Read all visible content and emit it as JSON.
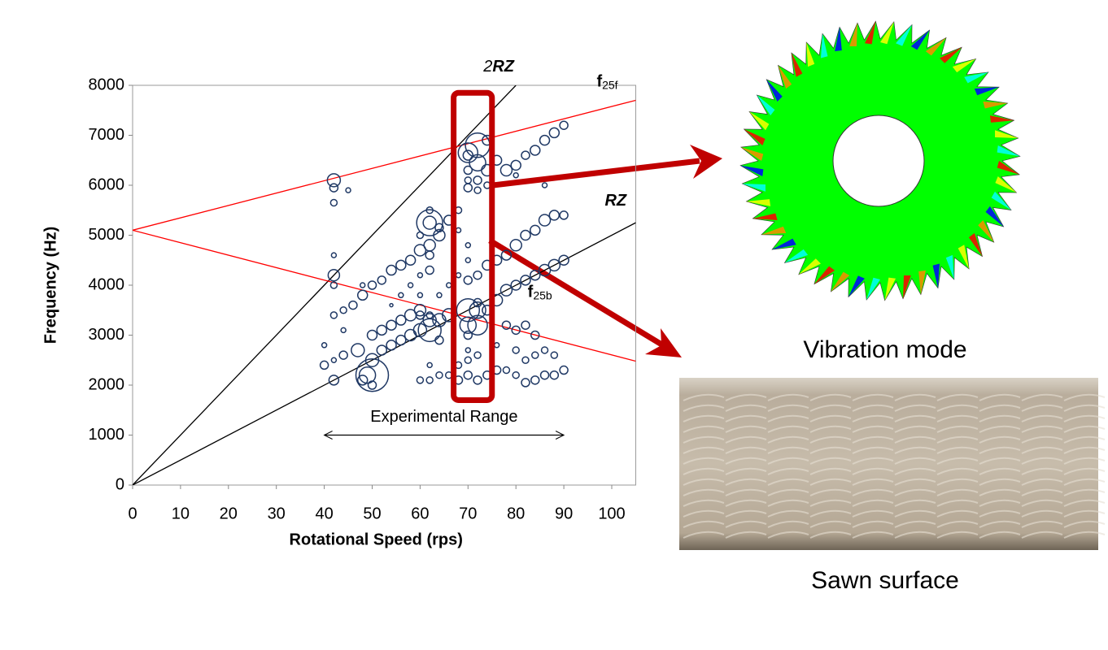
{
  "chart_data": {
    "type": "scatter",
    "xlabel": "Rotational Speed (rps)",
    "ylabel": "Frequency (Hz)",
    "xlim": [
      0,
      105
    ],
    "ylim": [
      0,
      8000
    ],
    "xticks": [
      0,
      10,
      20,
      30,
      40,
      50,
      60,
      70,
      80,
      90,
      100
    ],
    "yticks": [
      0,
      1000,
      2000,
      3000,
      4000,
      5000,
      6000,
      7000,
      8000
    ],
    "series": [
      {
        "color": "#1f3864",
        "x": [
          42,
          42,
          42,
          45,
          42,
          42,
          42,
          40,
          40,
          42,
          42,
          44,
          44,
          42,
          44,
          46,
          48,
          48,
          47,
          50,
          49,
          48,
          50,
          50,
          50,
          52,
          54,
          56,
          58,
          60,
          62,
          64,
          58,
          60,
          56,
          54,
          52,
          54,
          56,
          58,
          60,
          62,
          62,
          64,
          66,
          60,
          62,
          50,
          52,
          54,
          56,
          58,
          60,
          62,
          62,
          60,
          62,
          62,
          64,
          66,
          62,
          60,
          70,
          70,
          72,
          72,
          72,
          70,
          70,
          72,
          70,
          74,
          74,
          76,
          78,
          80,
          82,
          84,
          86,
          88,
          90,
          74,
          80,
          86,
          70,
          70,
          72,
          72,
          74,
          70,
          72,
          70,
          72,
          74,
          76,
          78,
          80,
          82,
          84,
          86,
          88,
          90,
          76,
          78,
          80,
          82,
          84,
          86,
          88,
          90,
          78,
          80,
          82,
          84,
          80,
          82,
          84,
          86,
          88,
          76,
          78,
          80,
          82,
          84,
          86,
          88,
          90,
          60,
          62,
          64,
          66,
          68,
          70,
          72,
          74,
          76,
          68,
          70,
          72,
          70,
          64,
          62,
          68,
          68,
          70,
          70,
          68,
          66,
          64
        ],
        "values": [
          6100,
          5950,
          5650,
          5900,
          4600,
          4200,
          4000,
          2800,
          2400,
          2100,
          2500,
          2600,
          3100,
          3400,
          3500,
          3600,
          3800,
          4000,
          2700,
          2200,
          2200,
          2100,
          2500,
          2000,
          4000,
          4100,
          4300,
          4400,
          4500,
          4700,
          4800,
          5000,
          4000,
          3800,
          3800,
          3600,
          2700,
          2800,
          2900,
          3000,
          3100,
          3100,
          3300,
          3300,
          3400,
          3400,
          3400,
          3000,
          3100,
          3200,
          3300,
          3400,
          3500,
          4300,
          4600,
          5000,
          5250,
          5250,
          5150,
          5300,
          5500,
          4200,
          6650,
          6600,
          6800,
          6450,
          6100,
          6100,
          5950,
          5900,
          6300,
          6300,
          6900,
          6500,
          6300,
          6400,
          6600,
          6700,
          6900,
          7050,
          7200,
          6000,
          6200,
          6000,
          3500,
          3200,
          3500,
          3200,
          3500,
          3000,
          3650,
          4100,
          4200,
          4400,
          4500,
          4600,
          4800,
          5000,
          5100,
          5300,
          5400,
          5400,
          3700,
          3900,
          4000,
          4100,
          4200,
          4300,
          4400,
          4500,
          3200,
          3100,
          3200,
          3000,
          2700,
          2500,
          2600,
          2700,
          2600,
          2800,
          2300,
          2200,
          2050,
          2100,
          2200,
          2200,
          2300,
          2100,
          2100,
          2200,
          2200,
          2100,
          2200,
          2100,
          2200,
          2300,
          2400,
          2500,
          2600,
          2700,
          2900,
          2400,
          5500,
          5100,
          4800,
          4500,
          4200,
          4000,
          3800
        ],
        "sizes": [
          8,
          5,
          4,
          3,
          3,
          7,
          4,
          3,
          5,
          6,
          3,
          5,
          3,
          4,
          4,
          5,
          6,
          3,
          8,
          20,
          10,
          6,
          8,
          5,
          5,
          5,
          6,
          6,
          6,
          7,
          7,
          7,
          3,
          3,
          3,
          2,
          6,
          6,
          6,
          7,
          8,
          14,
          8,
          8,
          8,
          5,
          4,
          6,
          6,
          6,
          6,
          7,
          7,
          5,
          5,
          4,
          16,
          8,
          5,
          6,
          4,
          3,
          12,
          6,
          15,
          10,
          5,
          4,
          5,
          4,
          5,
          7,
          6,
          6,
          7,
          6,
          5,
          6,
          6,
          6,
          5,
          4,
          3,
          3,
          14,
          10,
          10,
          12,
          6,
          5,
          5,
          5,
          5,
          6,
          6,
          6,
          7,
          6,
          6,
          7,
          6,
          5,
          7,
          7,
          6,
          6,
          6,
          7,
          7,
          6,
          5,
          5,
          5,
          5,
          4,
          4,
          4,
          4,
          4,
          3,
          4,
          4,
          5,
          5,
          5,
          5,
          5,
          4,
          4,
          4,
          4,
          5,
          5,
          5,
          5,
          5,
          4,
          4,
          4,
          3,
          5,
          3,
          4,
          3,
          3,
          3,
          3,
          3,
          3
        ]
      }
    ],
    "lines": [
      {
        "label": [
          "2",
          "RZ"
        ],
        "color": "#000000",
        "x": [
          0,
          80
        ],
        "values": [
          0,
          8000
        ]
      },
      {
        "label": [
          "",
          "RZ"
        ],
        "color": "#000000",
        "x": [
          0,
          105
        ],
        "values": [
          0,
          5250
        ]
      },
      {
        "label": [
          "f",
          "25f"
        ],
        "color": "#ff0000",
        "x": [
          0,
          105
        ],
        "values": [
          5100,
          7700
        ]
      },
      {
        "label": [
          "f",
          "25b"
        ],
        "color": "#ff0000",
        "x": [
          0,
          105
        ],
        "values": [
          5100,
          2480
        ]
      }
    ],
    "range": {
      "label": "Experimental Range",
      "x": [
        40,
        90
      ],
      "y": 1000
    },
    "highlight": {
      "x": [
        67,
        75
      ],
      "y": [
        1700,
        7850
      ],
      "color": "#c00000"
    }
  },
  "captions": {
    "mode": "Vibration mode",
    "surface": "Sawn surface"
  }
}
